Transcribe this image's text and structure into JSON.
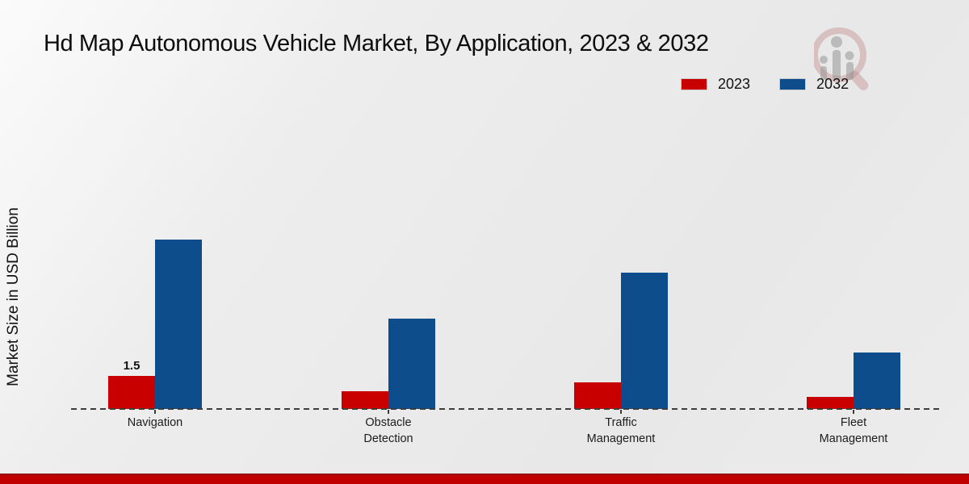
{
  "title": "Hd Map Autonomous Vehicle Market, By Application, 2023 & 2032",
  "ylabel": "Market Size in USD Billion",
  "legend": [
    {
      "label": "2023",
      "color": "#c80000"
    },
    {
      "label": "2032",
      "color": "#0d4d8c"
    }
  ],
  "colors": {
    "series_2023": "#c80000",
    "series_2032": "#0d4d8c",
    "bottom_strip": "#c00000",
    "baseline": "#3d3d3d",
    "background": "#ebebeb"
  },
  "watermark": {
    "name": "magnifier-bar-chart-logo"
  },
  "chart_data": {
    "type": "bar",
    "title": "Hd Map Autonomous Vehicle Market, By Application, 2023 & 2032",
    "categories": [
      "Navigation",
      "Obstacle Detection",
      "Traffic Management",
      "Fleet Management"
    ],
    "series": [
      {
        "name": "2023",
        "color": "#c80000",
        "values": [
          1.5,
          0.8,
          1.2,
          0.55
        ]
      },
      {
        "name": "2032",
        "color": "#0d4d8c",
        "values": [
          7.7,
          4.1,
          6.2,
          2.55
        ]
      }
    ],
    "xlabel": "",
    "ylabel": "Market Size in USD Billion",
    "ylim": [
      0,
      8
    ],
    "grid": false,
    "legend_position": "top-right",
    "baseline_style": "dashed",
    "annotations": [
      {
        "series": "2023",
        "category_index": 0,
        "text": "1.5"
      }
    ]
  }
}
